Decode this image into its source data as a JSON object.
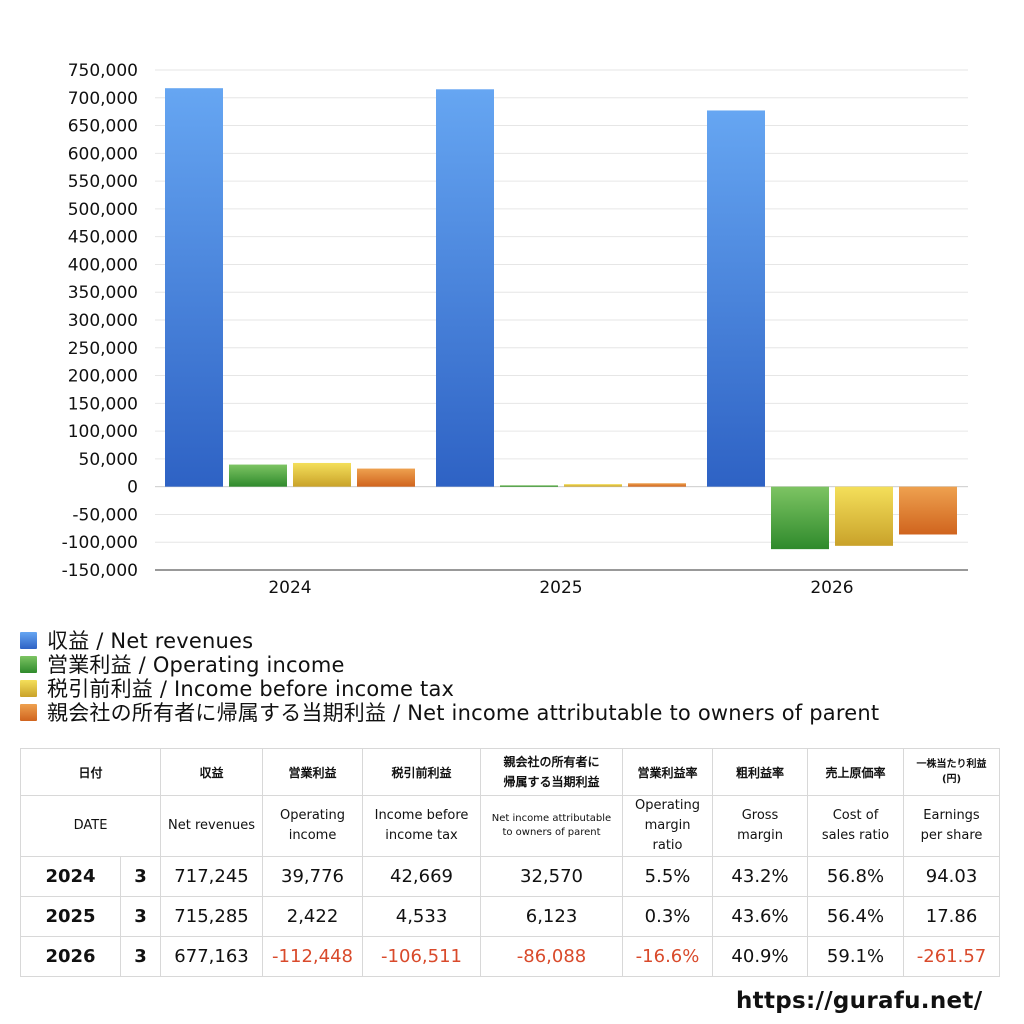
{
  "chart_data": {
    "type": "bar",
    "categories": [
      "2024",
      "2025",
      "2026"
    ],
    "series": [
      {
        "name": "収益 / Net revenues",
        "values": [
          717245,
          715285,
          677163
        ],
        "color": "#3f7fe0"
      },
      {
        "name": "営業利益 / Operating income",
        "values": [
          39776,
          2422,
          -112448
        ],
        "color": "#4aa43e"
      },
      {
        "name": "税引前利益 / Income before income tax",
        "values": [
          42669,
          4533,
          -106511
        ],
        "color": "#e2c33b"
      },
      {
        "name": "親会社の所有者に帰属する当期利益 / Net income attributable to owners of parent",
        "values": [
          32570,
          6123,
          -86088
        ],
        "color": "#e17a30"
      }
    ],
    "ylim": [
      -150000,
      750000
    ],
    "yticks": [
      "750,000",
      "700,000",
      "650,000",
      "600,000",
      "550,000",
      "500,000",
      "450,000",
      "400,000",
      "350,000",
      "300,000",
      "250,000",
      "200,000",
      "150,000",
      "100,000",
      "50,000",
      "0",
      "-50,000",
      "-100,000",
      "-150,000"
    ],
    "grid": true,
    "legend_position": "bottom-left"
  },
  "table": {
    "header_jp": [
      "日付",
      "収益",
      "営業利益",
      "税引前利益",
      "親会社の所有者に",
      "帰属する当期利益",
      "営業利益率",
      "粗利益率",
      "売上原価率",
      "一株当たり利益",
      "(円)"
    ],
    "header_en": {
      "date": "DATE",
      "net_revenues": "Net revenues",
      "op_income_1": "Operating",
      "op_income_2": "income",
      "ibt_1": "Income before",
      "ibt_2": "income tax",
      "ni_1": "Net income attributable",
      "ni_2": "to owners of parent",
      "opm_1": "Operating",
      "opm_2": "margin",
      "opm_3": "ratio",
      "gm_1": "Gross",
      "gm_2": "margin",
      "cos_1": "Cost of",
      "cos_2": "sales ratio",
      "eps_1": "Earnings",
      "eps_2": "per share"
    },
    "rows": [
      {
        "year": "2024",
        "month": "3",
        "revenues": "717,245",
        "op_income": "39,776",
        "ibt": "42,669",
        "ni": "32,570",
        "op_margin": "5.5%",
        "gross_margin": "43.2%",
        "cos_ratio": "56.8%",
        "eps": "94.03"
      },
      {
        "year": "2025",
        "month": "3",
        "revenues": "715,285",
        "op_income": "2,422",
        "ibt": "4,533",
        "ni": "6,123",
        "op_margin": "0.3%",
        "gross_margin": "43.6%",
        "cos_ratio": "56.4%",
        "eps": "17.86"
      },
      {
        "year": "2026",
        "month": "3",
        "revenues": "677,163",
        "op_income": "-112,448",
        "ibt": "-106,511",
        "ni": "-86,088",
        "op_margin": "-16.6%",
        "gross_margin": "40.9%",
        "cos_ratio": "59.1%",
        "eps": "-261.57"
      }
    ],
    "negative_color": "#d94a2b"
  },
  "watermark": "https://gurafu.net/"
}
